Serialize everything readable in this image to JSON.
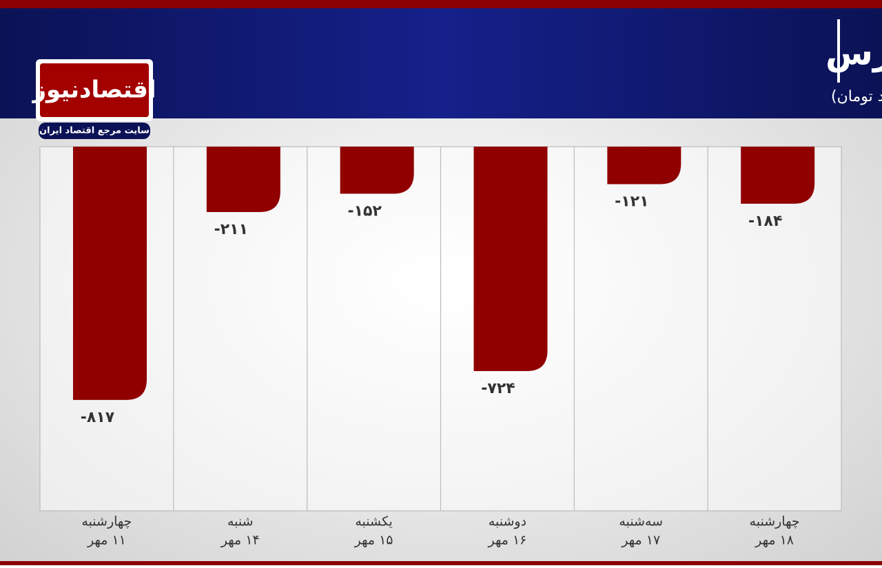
{
  "chart_data": {
    "type": "bar",
    "title": "روند ورود و خروج پول حقیقی در بورس",
    "subtitle": "(واحد:میلیارد تومان)",
    "logo_text": "اقتصادنیوز",
    "logo_tagline": "سایت مرجع اقتصاد ایران",
    "categories": [
      [
        "چهارشنبه",
        "۱۱ مهر"
      ],
      [
        "شنبه",
        "۱۴ مهر"
      ],
      [
        "یکشنبه",
        "۱۵ مهر"
      ],
      [
        "دوشنبه",
        "۱۶ مهر"
      ],
      [
        "سه‌شنبه",
        "۱۷ مهر"
      ],
      [
        "چهارشنبه",
        "۱۸ مهر"
      ]
    ],
    "values": [
      -817,
      -211,
      -152,
      -724,
      -121,
      -184
    ],
    "value_labels": [
      "-۸۱۷",
      "-۲۱۱",
      "-۱۵۲",
      "-۷۲۴",
      "-۱۲۱",
      "-۱۸۴"
    ],
    "color": "#900000",
    "ylim": [
      -1175,
      0
    ]
  }
}
